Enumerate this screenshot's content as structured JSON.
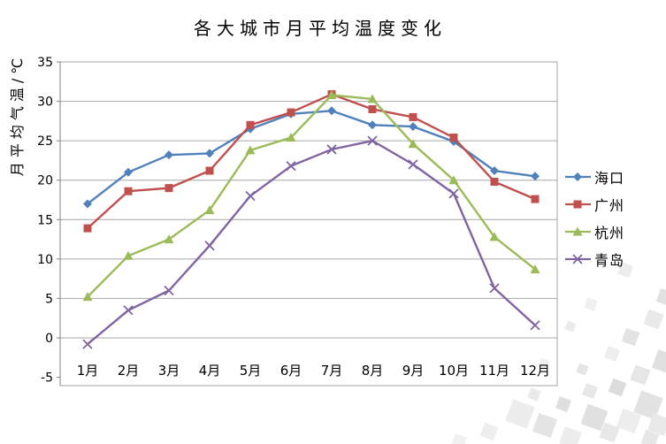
{
  "page": {
    "background_color": "#ffffff"
  },
  "chart_data": {
    "type": "line",
    "title": "各大城市月平均温度变化",
    "ylabel": "月平均气温/℃",
    "xlabel": "",
    "categories": [
      "1月",
      "2月",
      "3月",
      "4月",
      "5月",
      "6月",
      "7月",
      "8月",
      "9月",
      "10月",
      "11月",
      "12月"
    ],
    "series": [
      {
        "name": "海口",
        "color": "#4F81BD",
        "marker": "diamond",
        "values": [
          17.0,
          21.0,
          23.2,
          23.4,
          26.5,
          28.4,
          28.8,
          27.0,
          26.8,
          24.9,
          21.2,
          20.5
        ]
      },
      {
        "name": "广州",
        "color": "#C0504D",
        "marker": "square",
        "values": [
          13.9,
          18.6,
          19.0,
          21.2,
          27.0,
          28.6,
          30.9,
          29.0,
          28.0,
          25.4,
          19.8,
          17.6
        ]
      },
      {
        "name": "杭州",
        "color": "#9BBB59",
        "marker": "triangle",
        "values": [
          5.2,
          10.4,
          12.5,
          16.2,
          23.8,
          25.4,
          30.8,
          30.3,
          24.6,
          20.0,
          12.8,
          8.7
        ]
      },
      {
        "name": "青岛",
        "color": "#8064A2",
        "marker": "x",
        "values": [
          -0.8,
          3.5,
          6.0,
          11.7,
          18.0,
          21.8,
          23.9,
          25.0,
          22.0,
          18.3,
          6.3,
          1.6
        ]
      }
    ],
    "yticks": [
      35,
      30,
      25,
      20,
      15,
      10,
      5,
      0,
      -5
    ],
    "ylim": [
      -5,
      35
    ],
    "grid": "horizontal-only",
    "legend_position": "right",
    "colors": {
      "gridline": "#A6A6A6",
      "axis": "#808080",
      "text": "#000000"
    }
  }
}
